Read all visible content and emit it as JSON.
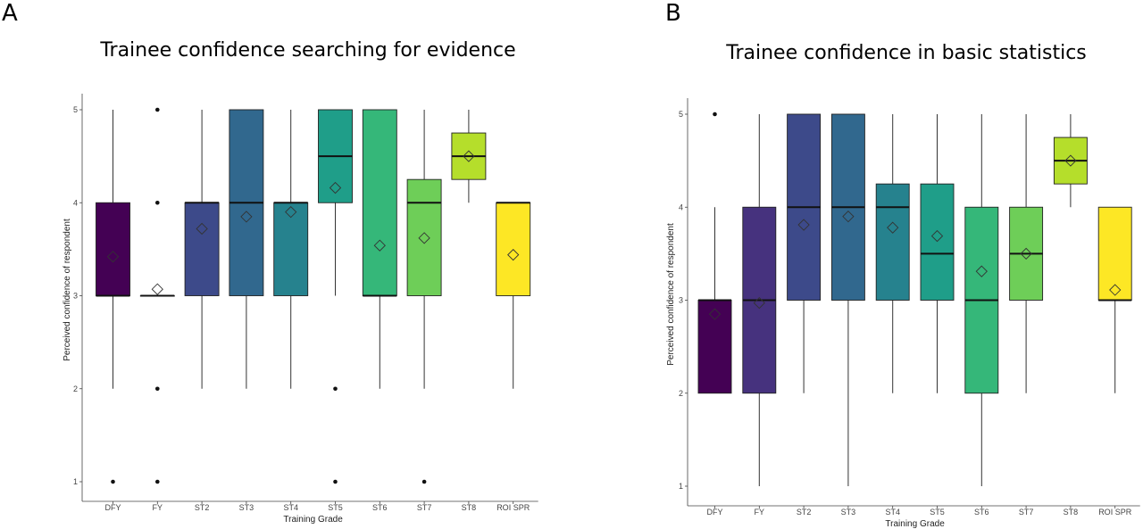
{
  "panels": {
    "a": {
      "letter": "A",
      "title": "Trainee confidence searching for evidence"
    },
    "b": {
      "letter": "B",
      "title": "Trainee confidence in basic statistics"
    }
  },
  "palette": [
    "#440154",
    "#46327e",
    "#3d4a8a",
    "#31688e",
    "#26828e",
    "#1f9e89",
    "#35b779",
    "#6ece58",
    "#b5de2b",
    "#fde725"
  ],
  "chart_data": [
    {
      "type": "box",
      "title": "Trainee confidence searching for evidence",
      "xlabel": "Training Grade",
      "ylabel": "Perceived confidence of respondent",
      "ylim": [
        1,
        5
      ],
      "yticks": [
        "1",
        "2",
        "3",
        "4",
        "5"
      ],
      "categories": [
        "DFY",
        "FY",
        "ST2",
        "ST3",
        "ST4",
        "ST5",
        "ST6",
        "ST7",
        "ST8",
        "ROI SPR"
      ],
      "boxes": [
        {
          "min": 2,
          "q1": 3,
          "median": 3,
          "q3": 4,
          "max": 5,
          "mean": 3.42,
          "outliers": [
            1
          ]
        },
        {
          "min": 3,
          "q1": 3,
          "median": 3,
          "q3": 3,
          "max": 3,
          "mean": 3.07,
          "outliers": [
            1,
            2,
            4,
            5
          ]
        },
        {
          "min": 2,
          "q1": 3,
          "median": 4,
          "q3": 4,
          "max": 5,
          "mean": 3.72,
          "outliers": []
        },
        {
          "min": 2,
          "q1": 3,
          "median": 4,
          "q3": 5,
          "max": 5,
          "mean": 3.85,
          "outliers": []
        },
        {
          "min": 2,
          "q1": 3,
          "median": 4,
          "q3": 4,
          "max": 5,
          "mean": 3.9,
          "outliers": []
        },
        {
          "min": 3,
          "q1": 4,
          "median": 4.5,
          "q3": 5,
          "max": 5,
          "mean": 4.16,
          "outliers": [
            1,
            2
          ]
        },
        {
          "min": 2,
          "q1": 3,
          "median": 3,
          "q3": 5,
          "max": 5,
          "mean": 3.54,
          "outliers": []
        },
        {
          "min": 2,
          "q1": 3,
          "median": 4,
          "q3": 4.25,
          "max": 5,
          "mean": 3.62,
          "outliers": [
            1
          ]
        },
        {
          "min": 4,
          "q1": 4.25,
          "median": 4.5,
          "q3": 4.75,
          "max": 5,
          "mean": 4.5,
          "outliers": []
        },
        {
          "min": 2,
          "q1": 3,
          "median": 4,
          "q3": 4,
          "max": 4,
          "mean": 3.44,
          "outliers": []
        }
      ]
    },
    {
      "type": "box",
      "title": "Trainee confidence in basic statistics",
      "xlabel": "Training Grade",
      "ylabel": "Perceived confidence of respondent",
      "ylim": [
        1,
        5
      ],
      "yticks": [
        "1",
        "2",
        "3",
        "4",
        "5"
      ],
      "categories": [
        "DFY",
        "FY",
        "ST2",
        "ST3",
        "ST4",
        "ST5",
        "ST6",
        "ST7",
        "ST8",
        "ROI SPR"
      ],
      "boxes": [
        {
          "min": 2,
          "q1": 2,
          "median": 3,
          "q3": 3,
          "max": 4,
          "mean": 2.85,
          "outliers": [
            5
          ]
        },
        {
          "min": 1,
          "q1": 2,
          "median": 3,
          "q3": 4,
          "max": 5,
          "mean": 2.97,
          "outliers": []
        },
        {
          "min": 2,
          "q1": 3,
          "median": 4,
          "q3": 5,
          "max": 5,
          "mean": 3.81,
          "outliers": []
        },
        {
          "min": 1,
          "q1": 3,
          "median": 4,
          "q3": 5,
          "max": 5,
          "mean": 3.9,
          "outliers": []
        },
        {
          "min": 2,
          "q1": 3,
          "median": 4,
          "q3": 4.25,
          "max": 5,
          "mean": 3.78,
          "outliers": []
        },
        {
          "min": 2,
          "q1": 3,
          "median": 3.5,
          "q3": 4.25,
          "max": 5,
          "mean": 3.69,
          "outliers": []
        },
        {
          "min": 1,
          "q1": 2,
          "median": 3,
          "q3": 4,
          "max": 5,
          "mean": 3.31,
          "outliers": []
        },
        {
          "min": 2,
          "q1": 3,
          "median": 3.5,
          "q3": 4,
          "max": 5,
          "mean": 3.5,
          "outliers": []
        },
        {
          "min": 4,
          "q1": 4.25,
          "median": 4.5,
          "q3": 4.75,
          "max": 5,
          "mean": 4.5,
          "outliers": []
        },
        {
          "min": 2,
          "q1": 3,
          "median": 3,
          "q3": 4,
          "max": 4,
          "mean": 3.11,
          "outliers": []
        }
      ]
    }
  ]
}
